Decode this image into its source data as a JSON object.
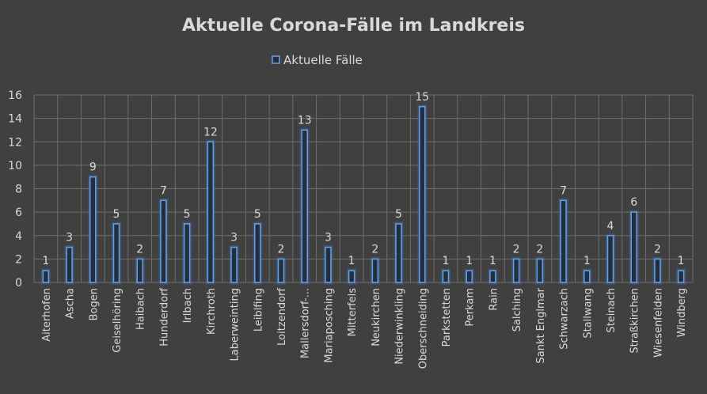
{
  "chart_data": {
    "type": "bar",
    "title": "Aktuelle Corona-Fälle im Landkreis",
    "legend": {
      "label": "Aktuelle Fälle",
      "position": "top"
    },
    "series": [
      {
        "name": "Aktuelle Fälle",
        "color": "#6aa0e0"
      }
    ],
    "categories": [
      "Aiterhofen",
      "Ascha",
      "Bogen",
      "Geiselhöring",
      "Haibach",
      "Hunderdorf",
      "Irlbach",
      "Kirchroth",
      "Laberweinting",
      "Leiblfing",
      "Loitzendorf",
      "Mallersdorf-...",
      "Mariaposching",
      "Mitterfels",
      "Neukirchen",
      "Niederwinkling",
      "Oberschneiding",
      "Parkstetten",
      "Perkam",
      "Rain",
      "Salching",
      "Sankt Englmar",
      "Schwarzach",
      "Stallwang",
      "Steinach",
      "Straßkirchen",
      "Wiesenfelden",
      "Windberg"
    ],
    "values": [
      1,
      3,
      9,
      5,
      2,
      7,
      5,
      12,
      3,
      5,
      2,
      13,
      3,
      1,
      2,
      5,
      15,
      1,
      1,
      1,
      2,
      2,
      7,
      1,
      4,
      6,
      2,
      1
    ],
    "yticks": [
      "0",
      "2",
      "4",
      "6",
      "8",
      "10",
      "12",
      "14",
      "16"
    ],
    "ylim": [
      0,
      16
    ],
    "grid": true,
    "data_labels": true,
    "background": "#404040"
  }
}
